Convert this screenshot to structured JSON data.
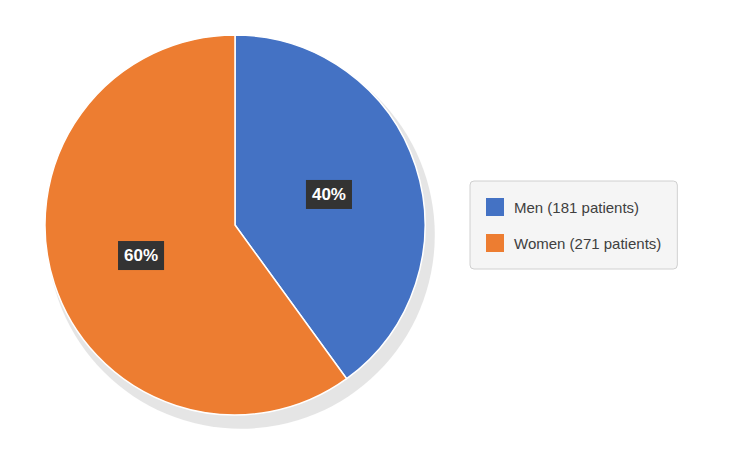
{
  "chart_data": {
    "type": "pie",
    "categories": [
      "Men (181 patients)",
      "Women (271 patients)"
    ],
    "values": [
      40,
      60
    ],
    "value_labels": [
      "40%",
      "60%"
    ],
    "colors": [
      "#4472C4",
      "#ED7D31"
    ],
    "data_labels": true,
    "legend": "right"
  }
}
